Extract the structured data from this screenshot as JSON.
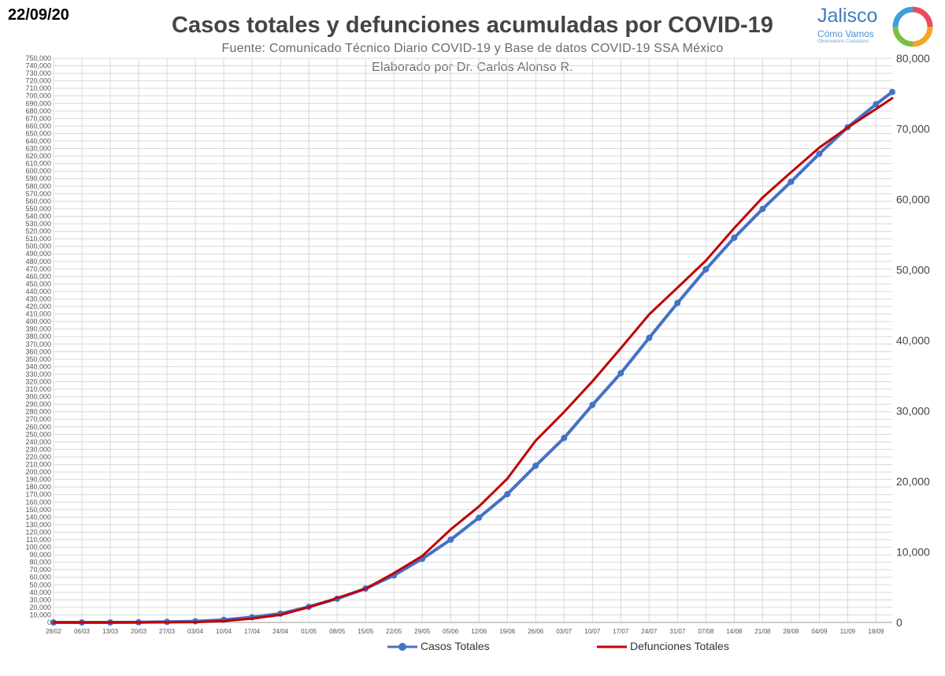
{
  "header": {
    "date": "22/09/20",
    "title": "Casos totales y defunciones acumuladas por COVID-19",
    "subtitle_1": "Fuente: Comunicado Técnico Diario COVID-19 y Base de datos COVID-19 SSA México",
    "subtitle_2": "Elaborado por Dr. Carlos Alonso R."
  },
  "logo": {
    "name": "Jalisco",
    "tagline": "Cómo Vamos",
    "small_text": "Observatorio Ciudadano",
    "icon": "rainbow-ring-icon"
  },
  "colors": {
    "cases": "#4472C4",
    "deaths": "#C00000",
    "grid": "#d9d9d9",
    "title": "#444444"
  },
  "chart_data": {
    "type": "line",
    "x_tick_labels": [
      "28/02",
      "06/03",
      "13/03",
      "20/03",
      "27/03",
      "03/04",
      "10/04",
      "17/04",
      "24/04",
      "01/05",
      "08/05",
      "15/05",
      "22/05",
      "29/05",
      "05/06",
      "12/06",
      "19/06",
      "26/06",
      "03/07",
      "10/07",
      "17/07",
      "24/07",
      "31/07",
      "07/08",
      "14/08",
      "21/08",
      "28/08",
      "04/09",
      "11/09",
      "18/09"
    ],
    "x_range": [
      "28/02",
      "22/09"
    ],
    "y_left": {
      "min": 0,
      "max": 750000,
      "step": 10000
    },
    "y_right": {
      "min": 0,
      "max": 80000,
      "step": 10000
    },
    "grid": true,
    "legend_position": "bottom",
    "series": [
      {
        "name": "Casos Totales",
        "axis": "left",
        "marker": "circle",
        "points": [
          [
            "28/02",
            1
          ],
          [
            "06/03",
            5
          ],
          [
            "13/03",
            26
          ],
          [
            "20/03",
            203
          ],
          [
            "27/03",
            717
          ],
          [
            "03/04",
            1510
          ],
          [
            "10/04",
            3441
          ],
          [
            "17/04",
            6875
          ],
          [
            "24/04",
            11633
          ],
          [
            "01/05",
            20739
          ],
          [
            "08/05",
            31522
          ],
          [
            "15/05",
            45032
          ],
          [
            "22/05",
            62527
          ],
          [
            "29/05",
            84627
          ],
          [
            "05/06",
            110026
          ],
          [
            "12/06",
            139196
          ],
          [
            "19/06",
            170485
          ],
          [
            "26/06",
            208392
          ],
          [
            "03/07",
            245251
          ],
          [
            "10/07",
            289174
          ],
          [
            "17/07",
            331298
          ],
          [
            "24/07",
            378285
          ],
          [
            "31/07",
            424637
          ],
          [
            "07/08",
            469407
          ],
          [
            "14/08",
            511369
          ],
          [
            "21/08",
            549734
          ],
          [
            "28/08",
            585738
          ],
          [
            "04/09",
            623090
          ],
          [
            "11/09",
            658299
          ],
          [
            "18/09",
            688954
          ],
          [
            "22/09",
            705263
          ]
        ]
      },
      {
        "name": "Defunciones Totales",
        "axis": "right",
        "marker": "none",
        "points": [
          [
            "28/02",
            0
          ],
          [
            "06/03",
            0
          ],
          [
            "13/03",
            0
          ],
          [
            "20/03",
            2
          ],
          [
            "27/03",
            12
          ],
          [
            "03/04",
            50
          ],
          [
            "10/04",
            194
          ],
          [
            "17/04",
            546
          ],
          [
            "24/04",
            1069
          ],
          [
            "01/05",
            2154
          ],
          [
            "08/05",
            3465
          ],
          [
            "15/05",
            4767
          ],
          [
            "22/05",
            6989
          ],
          [
            "29/05",
            9415
          ],
          [
            "05/06",
            13170
          ],
          [
            "12/06",
            16448
          ],
          [
            "19/06",
            20394
          ],
          [
            "26/06",
            25779
          ],
          [
            "03/07",
            29843
          ],
          [
            "10/07",
            34191
          ],
          [
            "17/07",
            38888
          ],
          [
            "24/07",
            43680
          ],
          [
            "31/07",
            47472
          ],
          [
            "07/08",
            51311
          ],
          [
            "14/08",
            55908
          ],
          [
            "21/08",
            60254
          ],
          [
            "28/08",
            63819
          ],
          [
            "04/09",
            67326
          ],
          [
            "11/09",
            70183
          ],
          [
            "18/09",
            72803
          ],
          [
            "22/09",
            74348
          ]
        ]
      }
    ]
  }
}
